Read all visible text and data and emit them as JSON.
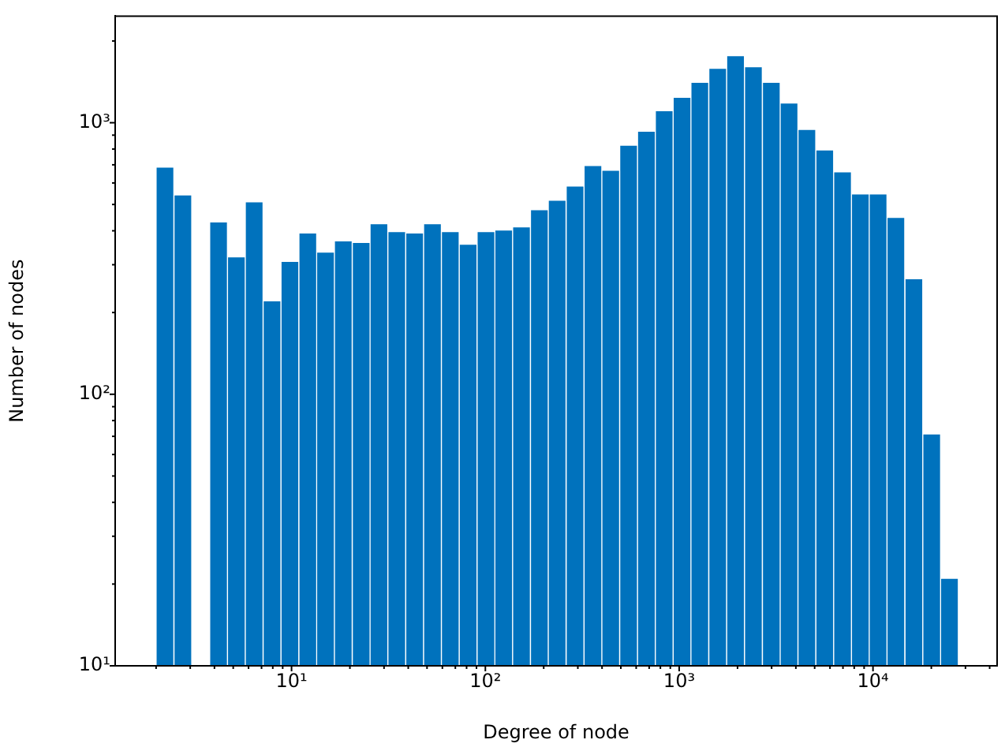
{
  "chart_data": {
    "type": "histogram",
    "xlabel": "Degree of node",
    "ylabel": "Number of nodes",
    "log": "xy",
    "grid": false,
    "legend": false,
    "color": "#0072bd",
    "bins": [
      2,
      2.47,
      3.06,
      3.78,
      4.67,
      5.77,
      7.13,
      8.82,
      10.9,
      13.5,
      16.6,
      20.6,
      25.4,
      31.4,
      38.8,
      48.0,
      59.3,
      73.3,
      90.6,
      112,
      138,
      171,
      211,
      261,
      323,
      399,
      493,
      610,
      753,
      931,
      1150,
      1420,
      1760,
      2170,
      2690,
      3320,
      4100,
      5070,
      6270,
      7740,
      9570,
      11800,
      14600,
      18100,
      22300,
      27600
    ],
    "values": [
      680,
      537,
      null,
      427,
      318,
      507,
      219,
      306,
      389,
      331,
      364,
      359,
      421,
      394,
      389,
      421,
      394,
      354,
      394,
      399,
      410,
      474,
      514,
      579,
      689,
      662,
      819,
      923,
      1097,
      1230,
      1396,
      1573,
      1750,
      1593,
      1396,
      1172,
      936,
      787,
      653,
      542,
      542,
      444,
      264,
      70.8,
      20.8
    ],
    "xlim": [
      1.23,
      43700
    ],
    "ylim": [
      10,
      2470
    ],
    "xticks": [
      {
        "value": 2,
        "label": null
      },
      {
        "value": 3,
        "label": null
      },
      {
        "value": 4,
        "label": null
      },
      {
        "value": 5,
        "label": null
      },
      {
        "value": 6,
        "label": null
      },
      {
        "value": 7,
        "label": null
      },
      {
        "value": 8,
        "label": null
      },
      {
        "value": 9,
        "label": null
      },
      {
        "value": 10,
        "label": "10¹"
      },
      {
        "value": 20,
        "label": null
      },
      {
        "value": 30,
        "label": null
      },
      {
        "value": 40,
        "label": null
      },
      {
        "value": 50,
        "label": null
      },
      {
        "value": 60,
        "label": null
      },
      {
        "value": 70,
        "label": null
      },
      {
        "value": 80,
        "label": null
      },
      {
        "value": 90,
        "label": null
      },
      {
        "value": 100,
        "label": "10²"
      },
      {
        "value": 200,
        "label": null
      },
      {
        "value": 300,
        "label": null
      },
      {
        "value": 400,
        "label": null
      },
      {
        "value": 500,
        "label": null
      },
      {
        "value": 600,
        "label": null
      },
      {
        "value": 700,
        "label": null
      },
      {
        "value": 800,
        "label": null
      },
      {
        "value": 900,
        "label": null
      },
      {
        "value": 1000,
        "label": "10³"
      },
      {
        "value": 2000,
        "label": null
      },
      {
        "value": 3000,
        "label": null
      },
      {
        "value": 4000,
        "label": null
      },
      {
        "value": 5000,
        "label": null
      },
      {
        "value": 6000,
        "label": null
      },
      {
        "value": 7000,
        "label": null
      },
      {
        "value": 8000,
        "label": null
      },
      {
        "value": 9000,
        "label": null
      },
      {
        "value": 10000,
        "label": "10⁴"
      },
      {
        "value": 20000,
        "label": null
      },
      {
        "value": 30000,
        "label": null
      },
      {
        "value": 40000,
        "label": null
      }
    ],
    "yticks": [
      {
        "value": 10,
        "label": "10¹"
      },
      {
        "value": 20,
        "label": null
      },
      {
        "value": 30,
        "label": null
      },
      {
        "value": 40,
        "label": null
      },
      {
        "value": 50,
        "label": null
      },
      {
        "value": 60,
        "label": null
      },
      {
        "value": 70,
        "label": null
      },
      {
        "value": 80,
        "label": null
      },
      {
        "value": 90,
        "label": null
      },
      {
        "value": 100,
        "label": "10²"
      },
      {
        "value": 200,
        "label": null
      },
      {
        "value": 300,
        "label": null
      },
      {
        "value": 400,
        "label": null
      },
      {
        "value": 500,
        "label": null
      },
      {
        "value": 600,
        "label": null
      },
      {
        "value": 700,
        "label": null
      },
      {
        "value": 800,
        "label": null
      },
      {
        "value": 900,
        "label": null
      },
      {
        "value": 1000,
        "label": "10³"
      },
      {
        "value": 2000,
        "label": null
      }
    ]
  }
}
